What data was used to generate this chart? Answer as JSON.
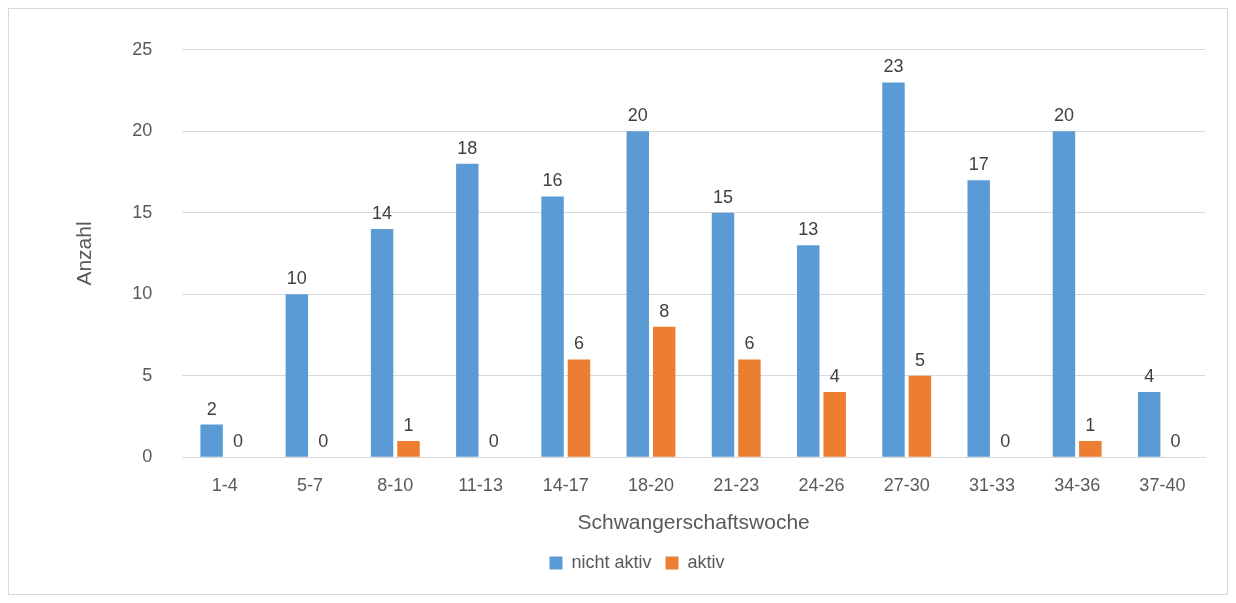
{
  "chart_data": {
    "type": "bar",
    "xlabel": "Schwangerschaftswoche",
    "ylabel": "Anzahl",
    "categories": [
      "1-4",
      "5-7",
      "8-10",
      "11-13",
      "14-17",
      "18-20",
      "21-23",
      "24-26",
      "27-30",
      "31-33",
      "34-36",
      "37-40"
    ],
    "series": [
      {
        "name": "nicht aktiv",
        "color": "#5b9bd5",
        "values": [
          2,
          10,
          14,
          18,
          16,
          20,
          15,
          13,
          23,
          17,
          20,
          4
        ]
      },
      {
        "name": "aktiv",
        "color": "#ed7d31",
        "values": [
          0,
          0,
          1,
          0,
          6,
          8,
          6,
          4,
          5,
          0,
          1,
          0
        ]
      }
    ],
    "ylim": [
      0,
      25
    ],
    "yticks": [
      0,
      5,
      10,
      15,
      20,
      25
    ],
    "grid": "y",
    "legend": "bottom",
    "data_labels": true
  }
}
